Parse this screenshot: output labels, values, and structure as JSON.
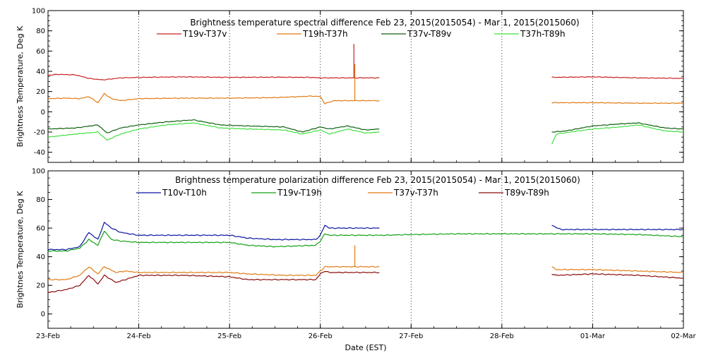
{
  "colors": {
    "red": "#c8201e",
    "orange": "#e07b12",
    "darkgreen": "#106010",
    "lightgreen": "#40e040",
    "blue": "#0a14a0",
    "green": "#12a012",
    "darkred": "#8a0c0c"
  },
  "shared_x": {
    "label": "Date (EST)",
    "range": [
      0,
      7
    ],
    "tick_positions": [
      0,
      1,
      2,
      3,
      4,
      5,
      6,
      7
    ],
    "tick_labels": [
      "23-Feb",
      "24-Feb",
      "25-Feb",
      "26-Feb",
      "27-Feb",
      "28-Feb",
      "01-Mar",
      "02-Mar"
    ]
  },
  "chart_data": [
    {
      "type": "line",
      "id": "spectral",
      "title": "Brightness temperature spectral difference     Feb 23, 2015(2015054) - Mar  1, 2015(2015060)",
      "ylabel": "Brightness Temperature, Deg K",
      "ylim": [
        -50,
        100
      ],
      "yticks": [
        -40,
        -20,
        0,
        20,
        40,
        60,
        80,
        100
      ],
      "grid": "dotted-vertical",
      "series": [
        {
          "name": "T19v-T37v",
          "color": "red",
          "segments": [
            [
              [
                0,
                36
              ],
              [
                0.1,
                37
              ],
              [
                0.3,
                36.5
              ],
              [
                0.45,
                33
              ],
              [
                0.6,
                31.5
              ],
              [
                0.8,
                33.5
              ],
              [
                1.0,
                34
              ],
              [
                1.5,
                34.5
              ],
              [
                2.0,
                34
              ],
              [
                2.5,
                34.2
              ],
              [
                2.9,
                34
              ],
              [
                3.0,
                33.5
              ],
              [
                3.4,
                33.5
              ],
              [
                3.6,
                33.5
              ],
              [
                3.65,
                33.5
              ]
            ],
            [
              [
                5.55,
                34
              ],
              [
                6.0,
                34.5
              ],
              [
                6.5,
                33.5
              ],
              [
                7.0,
                33
              ]
            ]
          ],
          "spikes": [
            [
              3.37,
              33.5,
              67
            ]
          ]
        },
        {
          "name": "T19h-T37h",
          "color": "orange",
          "segments": [
            [
              [
                0,
                13
              ],
              [
                0.2,
                13.5
              ],
              [
                0.35,
                13
              ],
              [
                0.45,
                15
              ],
              [
                0.55,
                9
              ],
              [
                0.62,
                18
              ],
              [
                0.7,
                13
              ],
              [
                0.8,
                11
              ],
              [
                1.0,
                13
              ],
              [
                1.5,
                13.5
              ],
              [
                2.0,
                13.5
              ],
              [
                2.5,
                14
              ],
              [
                2.9,
                15.5
              ],
              [
                3.0,
                15
              ],
              [
                3.05,
                8
              ],
              [
                3.15,
                11
              ],
              [
                3.4,
                11
              ],
              [
                3.65,
                11
              ]
            ],
            [
              [
                5.55,
                9
              ],
              [
                6.0,
                9
              ],
              [
                6.5,
                8.5
              ],
              [
                7.0,
                8.5
              ]
            ]
          ],
          "spikes": [
            [
              3.38,
              11,
              47
            ]
          ]
        },
        {
          "name": "T37v-T89v",
          "color": "darkgreen",
          "segments": [
            [
              [
                0,
                -17
              ],
              [
                0.3,
                -16
              ],
              [
                0.55,
                -13
              ],
              [
                0.65,
                -21
              ],
              [
                0.8,
                -16
              ],
              [
                1.0,
                -13
              ],
              [
                1.3,
                -10
              ],
              [
                1.6,
                -8
              ],
              [
                1.9,
                -13
              ],
              [
                2.2,
                -14
              ],
              [
                2.6,
                -15
              ],
              [
                2.8,
                -20
              ],
              [
                3.0,
                -15
              ],
              [
                3.1,
                -17
              ],
              [
                3.3,
                -14
              ],
              [
                3.5,
                -18
              ],
              [
                3.65,
                -17
              ]
            ],
            [
              [
                5.55,
                -20
              ],
              [
                5.7,
                -19
              ],
              [
                6.0,
                -14
              ],
              [
                6.3,
                -12
              ],
              [
                6.5,
                -11
              ],
              [
                6.8,
                -16
              ],
              [
                7.0,
                -17
              ]
            ]
          ],
          "spikes": []
        },
        {
          "name": "T37h-T89h",
          "color": "lightgreen",
          "segments": [
            [
              [
                0,
                -25
              ],
              [
                0.3,
                -22
              ],
              [
                0.55,
                -20
              ],
              [
                0.65,
                -28
              ],
              [
                0.8,
                -22
              ],
              [
                1.0,
                -17
              ],
              [
                1.3,
                -13
              ],
              [
                1.6,
                -11
              ],
              [
                1.9,
                -16
              ],
              [
                2.2,
                -17
              ],
              [
                2.6,
                -18
              ],
              [
                2.8,
                -22
              ],
              [
                3.0,
                -18
              ],
              [
                3.1,
                -22
              ],
              [
                3.3,
                -17
              ],
              [
                3.5,
                -21
              ],
              [
                3.65,
                -20
              ]
            ],
            [
              [
                5.55,
                -32
              ],
              [
                5.6,
                -22
              ],
              [
                6.0,
                -17
              ],
              [
                6.3,
                -15
              ],
              [
                6.5,
                -13
              ],
              [
                6.8,
                -19
              ],
              [
                7.0,
                -20
              ]
            ]
          ],
          "spikes": []
        }
      ]
    },
    {
      "type": "line",
      "id": "polarization",
      "title": "Brightness temperature polarization difference     Feb 23, 2015(2015054) - Mar  1, 2015(2015060)",
      "ylabel": "Brightnes Temperature, Deg K",
      "ylim": [
        -10,
        100
      ],
      "yticks": [
        0,
        20,
        40,
        60,
        80,
        100
      ],
      "grid": "dotted-vertical",
      "series": [
        {
          "name": "T10v-T10h",
          "color": "blue",
          "segments": [
            [
              [
                0,
                45
              ],
              [
                0.2,
                45
              ],
              [
                0.35,
                47
              ],
              [
                0.45,
                57
              ],
              [
                0.55,
                52
              ],
              [
                0.62,
                64
              ],
              [
                0.7,
                60
              ],
              [
                0.8,
                57
              ],
              [
                1.0,
                55
              ],
              [
                1.5,
                55
              ],
              [
                2.0,
                55
              ],
              [
                2.2,
                53
              ],
              [
                2.5,
                52
              ],
              [
                2.95,
                52
              ],
              [
                3.0,
                55
              ],
              [
                3.05,
                62
              ],
              [
                3.1,
                60
              ],
              [
                3.3,
                60
              ],
              [
                3.65,
                60
              ]
            ],
            [
              [
                5.55,
                62
              ],
              [
                5.65,
                59
              ],
              [
                6.0,
                59
              ],
              [
                6.5,
                59
              ],
              [
                7.0,
                59
              ]
            ]
          ],
          "spikes": []
        },
        {
          "name": "T19v-T19h",
          "color": "green",
          "segments": [
            [
              [
                0,
                44
              ],
              [
                0.2,
                44
              ],
              [
                0.35,
                46
              ],
              [
                0.45,
                52
              ],
              [
                0.55,
                48
              ],
              [
                0.62,
                58
              ],
              [
                0.7,
                52
              ],
              [
                0.8,
                51
              ],
              [
                1.0,
                50
              ],
              [
                1.5,
                50
              ],
              [
                2.0,
                50
              ],
              [
                2.2,
                48
              ],
              [
                2.5,
                47
              ],
              [
                2.95,
                48
              ],
              [
                3.0,
                51
              ],
              [
                3.05,
                56
              ],
              [
                3.1,
                55
              ],
              [
                3.3,
                55
              ],
              [
                3.65,
                55
              ],
              [
                3.7,
                55
              ],
              [
                4.0,
                55.5
              ],
              [
                4.5,
                56
              ],
              [
                5.0,
                56
              ],
              [
                5.5,
                56
              ],
              [
                6.0,
                56
              ],
              [
                6.5,
                55.5
              ],
              [
                7.0,
                54
              ]
            ]
          ],
          "spikes": []
        },
        {
          "name": "T37v-T37h",
          "color": "orange",
          "segments": [
            [
              [
                0,
                24
              ],
              [
                0.2,
                24
              ],
              [
                0.35,
                27
              ],
              [
                0.45,
                33
              ],
              [
                0.55,
                28
              ],
              [
                0.62,
                33
              ],
              [
                0.75,
                29
              ],
              [
                0.85,
                30
              ],
              [
                1.0,
                29
              ],
              [
                1.5,
                29
              ],
              [
                2.0,
                29
              ],
              [
                2.2,
                28
              ],
              [
                2.6,
                27
              ],
              [
                2.95,
                27
              ],
              [
                3.0,
                30
              ],
              [
                3.05,
                33
              ],
              [
                3.1,
                33
              ],
              [
                3.3,
                33
              ],
              [
                3.65,
                33
              ]
            ],
            [
              [
                5.55,
                33
              ],
              [
                5.6,
                31
              ],
              [
                6.0,
                31
              ],
              [
                6.5,
                30
              ],
              [
                7.0,
                29
              ]
            ]
          ],
          "spikes": [
            [
              3.38,
              33,
              48
            ]
          ]
        },
        {
          "name": "T89v-T89h",
          "color": "darkred",
          "segments": [
            [
              [
                0,
                15
              ],
              [
                0.2,
                17
              ],
              [
                0.35,
                20
              ],
              [
                0.45,
                27
              ],
              [
                0.55,
                21
              ],
              [
                0.62,
                27
              ],
              [
                0.75,
                22
              ],
              [
                0.85,
                24
              ],
              [
                1.0,
                27
              ],
              [
                1.5,
                27
              ],
              [
                2.0,
                26
              ],
              [
                2.2,
                24
              ],
              [
                2.6,
                24
              ],
              [
                2.95,
                24
              ],
              [
                3.0,
                28
              ],
              [
                3.05,
                30
              ],
              [
                3.1,
                29
              ],
              [
                3.3,
                29
              ],
              [
                3.65,
                29
              ]
            ],
            [
              [
                5.55,
                28
              ],
              [
                5.6,
                27
              ],
              [
                6.0,
                28
              ],
              [
                6.5,
                27
              ],
              [
                7.0,
                25
              ]
            ]
          ],
          "spikes": []
        }
      ]
    }
  ]
}
